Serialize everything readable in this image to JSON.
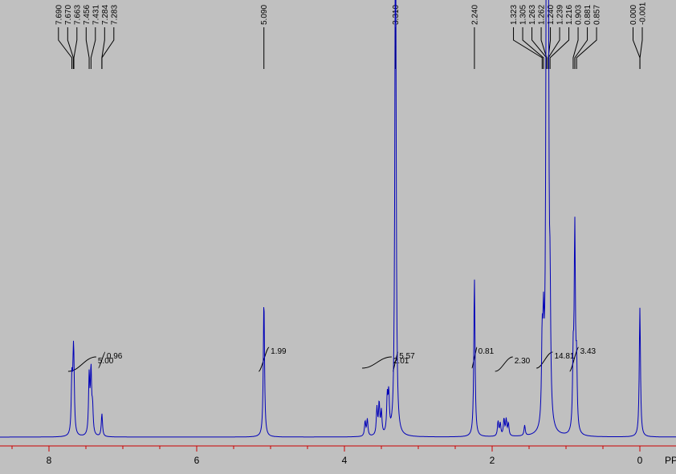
{
  "chart_data": {
    "type": "line",
    "title": "",
    "xlabel": "PPM",
    "ylabel": "",
    "x_reversed": true,
    "xlim": [
      8.6,
      -0.4
    ],
    "x_ticks": [
      {
        "value": 8,
        "label": "8"
      },
      {
        "value": 6,
        "label": "6"
      },
      {
        "value": 4,
        "label": "4"
      },
      {
        "value": 2,
        "label": "2"
      },
      {
        "value": 0,
        "label": "0"
      }
    ],
    "colors": {
      "background": "#c0c0c0",
      "spectrum": "#0000b8",
      "axis": "#cc0000",
      "integral": "#000000"
    },
    "peak_labels": [
      {
        "text": "7.690",
        "ppm": 7.69
      },
      {
        "text": "7.670",
        "ppm": 7.67
      },
      {
        "text": "7.663",
        "ppm": 7.663
      },
      {
        "text": "7.456",
        "ppm": 7.456
      },
      {
        "text": "7.431",
        "ppm": 7.431
      },
      {
        "text": "7.284",
        "ppm": 7.284
      },
      {
        "text": "7.283",
        "ppm": 7.283
      },
      {
        "text": "5.090",
        "ppm": 5.09
      },
      {
        "text": "3.310",
        "ppm": 3.31
      },
      {
        "text": "2.240",
        "ppm": 2.24
      },
      {
        "text": "1.323",
        "ppm": 1.323
      },
      {
        "text": "1.305",
        "ppm": 1.305
      },
      {
        "text": "1.263",
        "ppm": 1.263
      },
      {
        "text": "1.262",
        "ppm": 1.262
      },
      {
        "text": "1.240",
        "ppm": 1.24
      },
      {
        "text": "1.239",
        "ppm": 1.239
      },
      {
        "text": "1.216",
        "ppm": 1.216
      },
      {
        "text": "0.903",
        "ppm": 0.903
      },
      {
        "text": "0.881",
        "ppm": 0.881
      },
      {
        "text": "0.857",
        "ppm": 0.857
      },
      {
        "text": "0.000",
        "ppm": 0.0
      },
      {
        "text": "-0.001",
        "ppm": -0.001
      }
    ],
    "integrals": [
      {
        "label": "5.00",
        "from": 7.74,
        "to": 7.36
      },
      {
        "label": "0.96",
        "from": 7.33,
        "to": 7.24
      },
      {
        "label": "1.99",
        "from": 5.16,
        "to": 5.02
      },
      {
        "label": "2.01",
        "from": 3.76,
        "to": 3.36
      },
      {
        "label": "5.57",
        "from": 3.34,
        "to": 3.28
      },
      {
        "label": "0.81",
        "from": 2.27,
        "to": 2.21
      },
      {
        "label": "2.30",
        "from": 1.96,
        "to": 1.72
      },
      {
        "label": "14.81",
        "from": 1.4,
        "to": 1.18
      },
      {
        "label": "3.43",
        "from": 0.95,
        "to": 0.83
      }
    ],
    "series": [
      {
        "peaks": [
          {
            "ppm": 7.69,
            "height": 0.13
          },
          {
            "ppm": 7.67,
            "height": 0.135
          },
          {
            "ppm": 7.663,
            "height": 0.1
          },
          {
            "ppm": 7.456,
            "height": 0.14
          },
          {
            "ppm": 7.431,
            "height": 0.15
          },
          {
            "ppm": 7.41,
            "height": 0.06
          },
          {
            "ppm": 7.284,
            "height": 0.03
          },
          {
            "ppm": 7.283,
            "height": 0.025
          },
          {
            "ppm": 5.09,
            "height": 0.33
          },
          {
            "ppm": 3.72,
            "height": 0.035
          },
          {
            "ppm": 3.69,
            "height": 0.04
          },
          {
            "ppm": 3.56,
            "height": 0.065
          },
          {
            "ppm": 3.53,
            "height": 0.075
          },
          {
            "ppm": 3.5,
            "height": 0.055
          },
          {
            "ppm": 3.42,
            "height": 0.085
          },
          {
            "ppm": 3.4,
            "height": 0.09
          },
          {
            "ppm": 3.31,
            "height": 0.9
          },
          {
            "ppm": 3.306,
            "height": 0.47
          },
          {
            "ppm": 2.24,
            "height": 0.38
          },
          {
            "ppm": 1.92,
            "height": 0.035
          },
          {
            "ppm": 1.89,
            "height": 0.03
          },
          {
            "ppm": 1.84,
            "height": 0.04
          },
          {
            "ppm": 1.81,
            "height": 0.038
          },
          {
            "ppm": 1.78,
            "height": 0.03
          },
          {
            "ppm": 1.56,
            "height": 0.025
          },
          {
            "ppm": 1.323,
            "height": 0.19
          },
          {
            "ppm": 1.305,
            "height": 0.2
          },
          {
            "ppm": 1.263,
            "height": 1.0
          },
          {
            "ppm": 1.262,
            "height": 0.6
          },
          {
            "ppm": 1.24,
            "height": 0.57
          },
          {
            "ppm": 1.239,
            "height": 0.4
          },
          {
            "ppm": 1.216,
            "height": 0.25
          },
          {
            "ppm": 0.903,
            "height": 0.16
          },
          {
            "ppm": 0.881,
            "height": 0.48
          },
          {
            "ppm": 0.857,
            "height": 0.15
          },
          {
            "ppm": 0.0,
            "height": 0.29
          },
          {
            "ppm": -0.001,
            "height": 0.02
          }
        ]
      }
    ]
  }
}
